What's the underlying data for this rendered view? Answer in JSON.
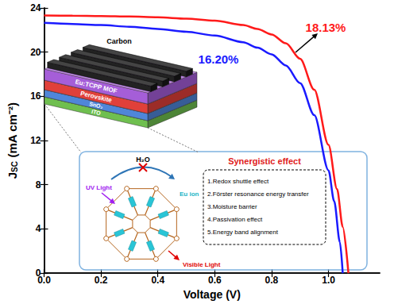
{
  "chart_data": {
    "type": "line",
    "x_label": "Voltage (V)",
    "y_label": "JSC (mA cm⁻²)",
    "xlim": [
      0,
      1.18
    ],
    "xticks": [
      {
        "value": 0,
        "label": "0.0"
      },
      0.2,
      0.4,
      0.6,
      0.8,
      {
        "value": 1,
        "label": "1.0"
      }
    ],
    "ylim": [
      0,
      24
    ],
    "yticks": [
      0,
      4,
      8,
      12,
      16,
      20,
      24
    ],
    "grid": false,
    "line_style": "solid",
    "marker": "none",
    "series": [
      {
        "color": "#ff1a1a",
        "annotation": "18.13%",
        "x": [
          0,
          0.1,
          0.2,
          0.3,
          0.4,
          0.5,
          0.6,
          0.7,
          0.75,
          0.8,
          0.85,
          0.9,
          0.95,
          1.0,
          1.03,
          1.05,
          1.07
        ],
        "values": [
          23.32,
          23.3,
          23.27,
          23.22,
          23.15,
          23.03,
          22.85,
          22.45,
          22.1,
          21.6,
          20.8,
          19.4,
          16.6,
          11.6,
          7.6,
          4.2,
          0
        ]
      },
      {
        "color": "#1a1aff",
        "annotation": "16.20%",
        "x": [
          0,
          0.1,
          0.2,
          0.3,
          0.4,
          0.5,
          0.6,
          0.7,
          0.75,
          0.8,
          0.85,
          0.9,
          0.95,
          1.0,
          1.02,
          1.04,
          1.05
        ],
        "values": [
          22.65,
          22.55,
          22.45,
          22.3,
          22.1,
          21.85,
          21.5,
          20.9,
          20.4,
          19.8,
          18.8,
          17.2,
          14.3,
          9.3,
          6.5,
          2.8,
          0
        ]
      }
    ]
  },
  "inset": {
    "layers": [
      "Carbon",
      "Eu:TCPP MOF",
      "Perovskite",
      "SnO₂",
      "ITO"
    ],
    "uv_light": "UV Light",
    "eu_ion": "Eu ion",
    "water": "H₂O",
    "visible_light": "Visible Light",
    "effects_title": "Synergistic effect",
    "effects": [
      "1.Redox shuttle effect",
      "2.Förster resonance energy transfer",
      "3.Moisture barrier",
      "4.Passivation effect",
      "5.Energy band alignment"
    ]
  }
}
